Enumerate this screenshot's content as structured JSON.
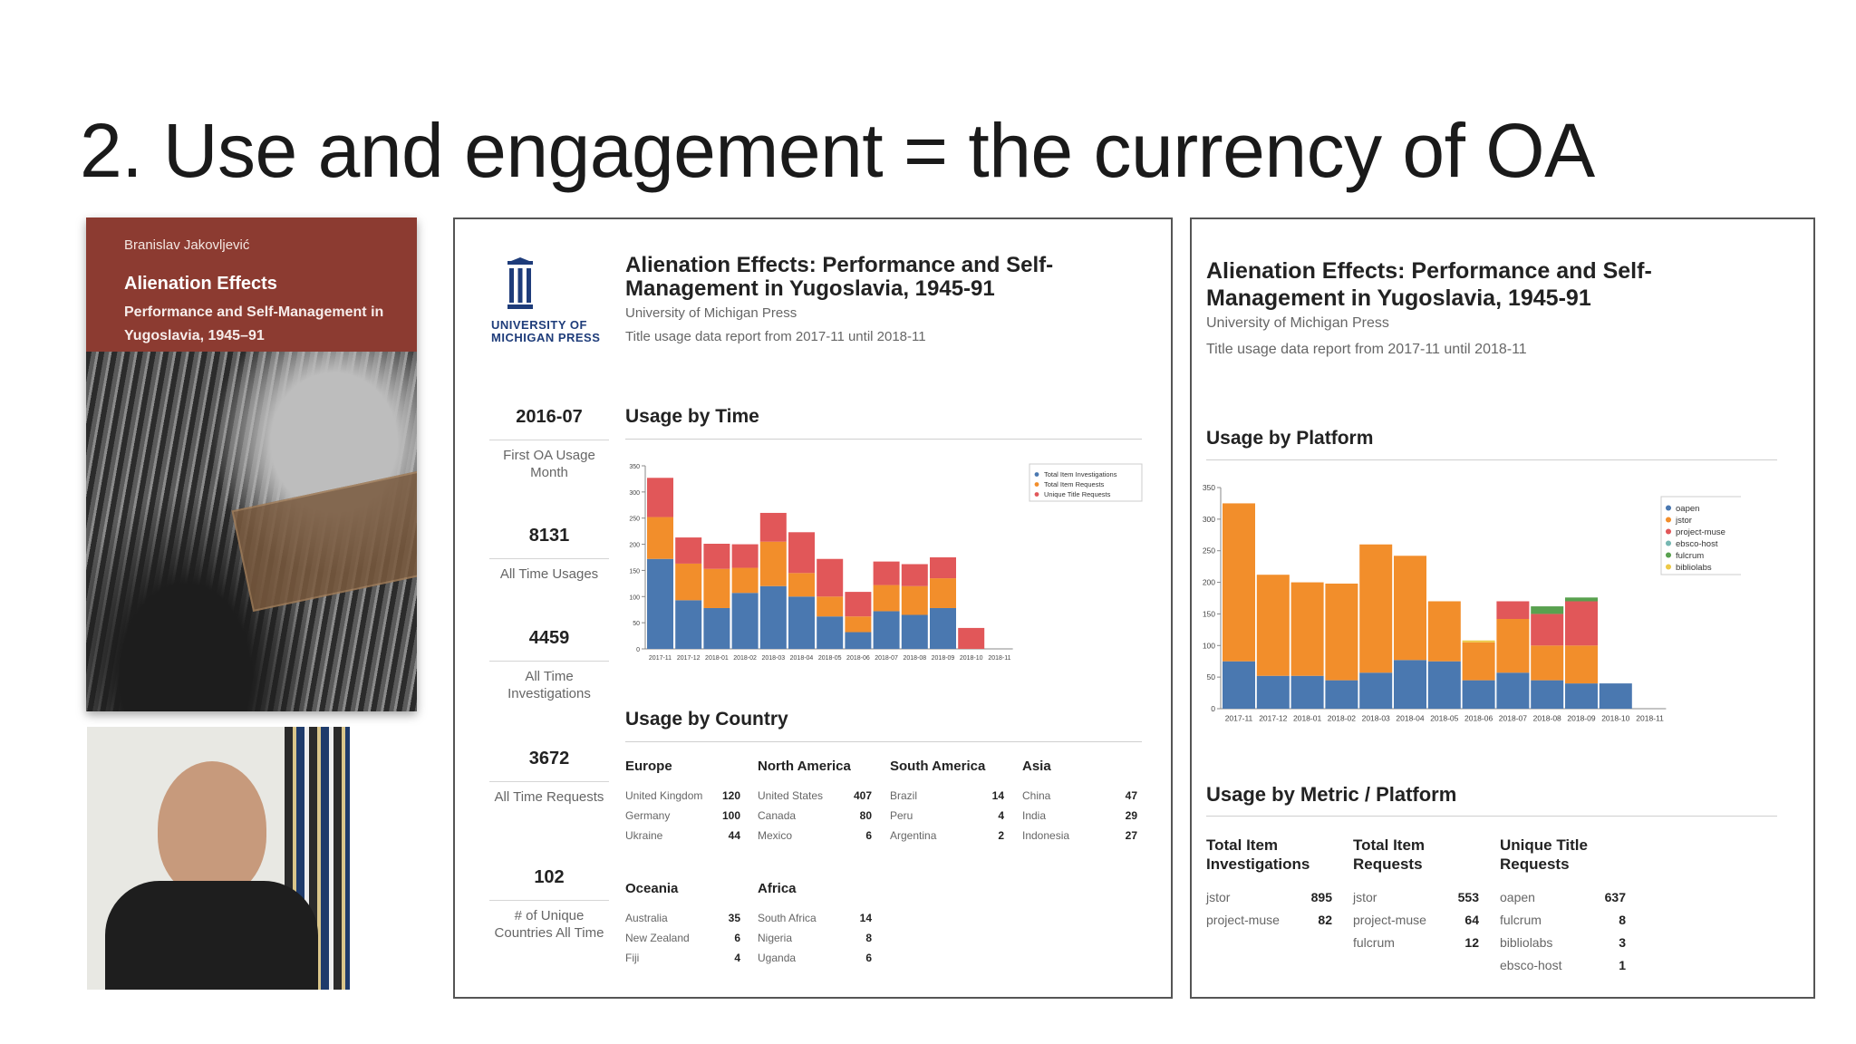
{
  "slide": {
    "title": "2. Use and engagement = the currency of OA"
  },
  "book": {
    "author": "Branislav Jakovljević",
    "title": "Alienation Effects",
    "subtitle": "Performance and Self-Management in Yugoslavia, 1945–91"
  },
  "report1": {
    "logo_text": "UNIVERSITY OF MICHIGAN PRESS",
    "title": "Alienation Effects: Performance and Self-Management in Yugoslavia, 1945-91",
    "publisher": "University of Michigan Press",
    "period": "Title usage data report from 2017-11 until 2018-11",
    "stats": [
      {
        "value": "2016-07",
        "label": "First OA Usage Month"
      },
      {
        "value": "8131",
        "label": "All Time Usages"
      },
      {
        "value": "4459",
        "label": "All Time Investigations"
      },
      {
        "value": "3672",
        "label": "All Time Requests"
      },
      {
        "value": "102",
        "label": "# of Unique Countries All Time"
      }
    ],
    "usage_by_time_heading": "Usage by Time",
    "usage_by_country_heading": "Usage by Country",
    "countries": [
      {
        "region": "Europe",
        "rows": [
          {
            "name": "United Kingdom",
            "value": "120"
          },
          {
            "name": "Germany",
            "value": "100"
          },
          {
            "name": "Ukraine",
            "value": "44"
          }
        ]
      },
      {
        "region": "North America",
        "rows": [
          {
            "name": "United States",
            "value": "407"
          },
          {
            "name": "Canada",
            "value": "80"
          },
          {
            "name": "Mexico",
            "value": "6"
          }
        ]
      },
      {
        "region": "South America",
        "rows": [
          {
            "name": "Brazil",
            "value": "14"
          },
          {
            "name": "Peru",
            "value": "4"
          },
          {
            "name": "Argentina",
            "value": "2"
          }
        ]
      },
      {
        "region": "Asia",
        "rows": [
          {
            "name": "China",
            "value": "47"
          },
          {
            "name": "India",
            "value": "29"
          },
          {
            "name": "Indonesia",
            "value": "27"
          }
        ]
      },
      {
        "region": "Oceania",
        "rows": [
          {
            "name": "Australia",
            "value": "35"
          },
          {
            "name": "New Zealand",
            "value": "6"
          },
          {
            "name": "Fiji",
            "value": "4"
          }
        ]
      },
      {
        "region": "Africa",
        "rows": [
          {
            "name": "South Africa",
            "value": "14"
          },
          {
            "name": "Nigeria",
            "value": "8"
          },
          {
            "name": "Uganda",
            "value": "6"
          }
        ]
      }
    ]
  },
  "report2": {
    "title": "Alienation Effects: Performance and Self-Management in Yugoslavia, 1945-91",
    "publisher": "University of Michigan Press",
    "period": "Title usage data report from 2017-11 until 2018-11",
    "usage_by_platform_heading": "Usage by Platform",
    "usage_by_metric_heading": "Usage by Metric / Platform",
    "metrics": [
      {
        "heading": "Total Item Investigations",
        "rows": [
          {
            "name": "jstor",
            "value": "895"
          },
          {
            "name": "project-muse",
            "value": "82"
          }
        ]
      },
      {
        "heading": "Total Item Requests",
        "rows": [
          {
            "name": "jstor",
            "value": "553"
          },
          {
            "name": "project-muse",
            "value": "64"
          },
          {
            "name": "fulcrum",
            "value": "12"
          }
        ]
      },
      {
        "heading": "Unique Title Requests",
        "rows": [
          {
            "name": "oapen",
            "value": "637"
          },
          {
            "name": "fulcrum",
            "value": "8"
          },
          {
            "name": "bibliolabs",
            "value": "3"
          },
          {
            "name": "ebsco-host",
            "value": "1"
          }
        ]
      }
    ]
  },
  "chart_data": [
    {
      "type": "bar",
      "stacked": true,
      "categories": [
        "2017-11",
        "2017-12",
        "2018-01",
        "2018-02",
        "2018-03",
        "2018-04",
        "2018-05",
        "2018-06",
        "2018-07",
        "2018-08",
        "2018-09",
        "2018-10",
        "2018-11"
      ],
      "series": [
        {
          "name": "Total Item Investigations",
          "color": "#4a78b0",
          "values": [
            172,
            93,
            78,
            107,
            120,
            100,
            62,
            32,
            72,
            65,
            78,
            0,
            0
          ]
        },
        {
          "name": "Total Item Requests",
          "color": "#f28e2b",
          "values": [
            80,
            70,
            75,
            48,
            85,
            45,
            38,
            30,
            50,
            55,
            57,
            0,
            0
          ]
        },
        {
          "name": "Unique Title Requests",
          "color": "#e15759",
          "values": [
            75,
            50,
            48,
            45,
            55,
            78,
            72,
            47,
            45,
            42,
            40,
            40,
            0
          ]
        }
      ],
      "ylim": [
        0,
        350
      ],
      "yticks": [
        0,
        50,
        100,
        150,
        200,
        250,
        300,
        350
      ],
      "legend": "top-right"
    },
    {
      "type": "bar",
      "stacked": true,
      "categories": [
        "2017-11",
        "2017-12",
        "2018-01",
        "2018-02",
        "2018-03",
        "2018-04",
        "2018-05",
        "2018-06",
        "2018-07",
        "2018-08",
        "2018-09",
        "2018-10",
        "2018-11"
      ],
      "series": [
        {
          "name": "oapen",
          "color": "#4a78b0",
          "values": [
            75,
            52,
            52,
            45,
            57,
            77,
            75,
            45,
            57,
            45,
            40,
            40,
            0
          ]
        },
        {
          "name": "jstor",
          "color": "#f28e2b",
          "values": [
            250,
            160,
            148,
            153,
            203,
            165,
            95,
            60,
            85,
            55,
            60,
            0,
            0
          ]
        },
        {
          "name": "project-muse",
          "color": "#e15759",
          "values": [
            0,
            0,
            0,
            0,
            0,
            0,
            0,
            0,
            28,
            50,
            70,
            0,
            0
          ]
        },
        {
          "name": "ebsco-host",
          "color": "#76b7b2",
          "values": [
            0,
            0,
            0,
            0,
            0,
            0,
            0,
            0,
            0,
            0,
            0,
            0,
            0
          ]
        },
        {
          "name": "fulcrum",
          "color": "#59a14f",
          "values": [
            0,
            0,
            0,
            0,
            0,
            0,
            0,
            0,
            0,
            12,
            6,
            0,
            0
          ]
        },
        {
          "name": "bibliolabs",
          "color": "#edc948",
          "values": [
            0,
            0,
            0,
            0,
            0,
            0,
            0,
            3,
            0,
            0,
            0,
            0,
            0
          ]
        }
      ],
      "ylim": [
        0,
        350
      ],
      "yticks": [
        0,
        50,
        100,
        150,
        200,
        250,
        300,
        350
      ],
      "legend": "top-right"
    }
  ]
}
